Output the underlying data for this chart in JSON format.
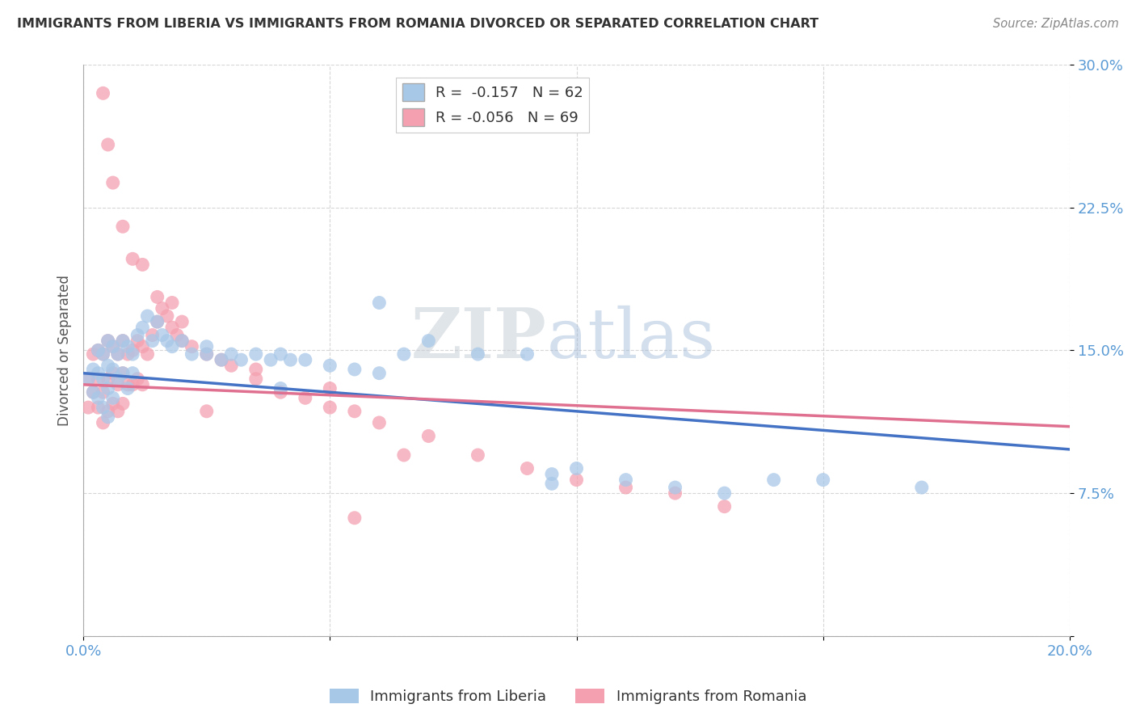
{
  "title": "IMMIGRANTS FROM LIBERIA VS IMMIGRANTS FROM ROMANIA DIVORCED OR SEPARATED CORRELATION CHART",
  "source": "Source: ZipAtlas.com",
  "ylabel": "Divorced or Separated",
  "xlim": [
    0.0,
    0.2
  ],
  "ylim": [
    0.0,
    0.3
  ],
  "liberia_color": "#a8c8e8",
  "romania_color": "#f4a0b0",
  "liberia_R": -0.157,
  "liberia_N": 62,
  "romania_R": -0.056,
  "romania_N": 69,
  "liberia_line_color": "#4472c4",
  "romania_line_color": "#e07090",
  "watermark_zip": "ZIP",
  "watermark_atlas": "atlas",
  "legend_label_1": "Immigrants from Liberia",
  "legend_label_2": "Immigrants from Romania",
  "liberia_x": [
    0.001,
    0.002,
    0.002,
    0.003,
    0.003,
    0.003,
    0.004,
    0.004,
    0.004,
    0.005,
    0.005,
    0.005,
    0.005,
    0.006,
    0.006,
    0.006,
    0.007,
    0.007,
    0.008,
    0.008,
    0.009,
    0.009,
    0.01,
    0.01,
    0.011,
    0.012,
    0.013,
    0.014,
    0.015,
    0.016,
    0.017,
    0.018,
    0.02,
    0.022,
    0.025,
    0.028,
    0.03,
    0.032,
    0.035,
    0.038,
    0.04,
    0.042,
    0.045,
    0.05,
    0.055,
    0.06,
    0.065,
    0.07,
    0.08,
    0.09,
    0.095,
    0.1,
    0.11,
    0.12,
    0.13,
    0.15,
    0.17,
    0.04,
    0.025,
    0.06,
    0.14,
    0.095
  ],
  "liberia_y": [
    0.135,
    0.14,
    0.128,
    0.15,
    0.138,
    0.125,
    0.148,
    0.135,
    0.12,
    0.155,
    0.142,
    0.13,
    0.115,
    0.152,
    0.14,
    0.125,
    0.148,
    0.135,
    0.155,
    0.138,
    0.152,
    0.13,
    0.148,
    0.138,
    0.158,
    0.162,
    0.168,
    0.155,
    0.165,
    0.158,
    0.155,
    0.152,
    0.155,
    0.148,
    0.152,
    0.145,
    0.148,
    0.145,
    0.148,
    0.145,
    0.148,
    0.145,
    0.145,
    0.142,
    0.14,
    0.175,
    0.148,
    0.155,
    0.148,
    0.148,
    0.085,
    0.088,
    0.082,
    0.078,
    0.075,
    0.082,
    0.078,
    0.13,
    0.148,
    0.138,
    0.082,
    0.08
  ],
  "romania_x": [
    0.001,
    0.001,
    0.002,
    0.002,
    0.003,
    0.003,
    0.003,
    0.004,
    0.004,
    0.004,
    0.005,
    0.005,
    0.005,
    0.006,
    0.006,
    0.006,
    0.007,
    0.007,
    0.007,
    0.008,
    0.008,
    0.008,
    0.009,
    0.009,
    0.01,
    0.01,
    0.011,
    0.011,
    0.012,
    0.012,
    0.013,
    0.014,
    0.015,
    0.016,
    0.017,
    0.018,
    0.019,
    0.02,
    0.022,
    0.025,
    0.028,
    0.03,
    0.035,
    0.04,
    0.045,
    0.05,
    0.055,
    0.06,
    0.07,
    0.08,
    0.09,
    0.1,
    0.11,
    0.12,
    0.13,
    0.004,
    0.005,
    0.006,
    0.008,
    0.01,
    0.012,
    0.015,
    0.018,
    0.02,
    0.025,
    0.035,
    0.05,
    0.055,
    0.065
  ],
  "romania_y": [
    0.135,
    0.12,
    0.148,
    0.128,
    0.15,
    0.135,
    0.12,
    0.148,
    0.128,
    0.112,
    0.155,
    0.135,
    0.118,
    0.152,
    0.138,
    0.122,
    0.148,
    0.132,
    0.118,
    0.155,
    0.138,
    0.122,
    0.148,
    0.132,
    0.15,
    0.132,
    0.155,
    0.135,
    0.152,
    0.132,
    0.148,
    0.158,
    0.165,
    0.172,
    0.168,
    0.162,
    0.158,
    0.155,
    0.152,
    0.148,
    0.145,
    0.142,
    0.135,
    0.128,
    0.125,
    0.12,
    0.118,
    0.112,
    0.105,
    0.095,
    0.088,
    0.082,
    0.078,
    0.075,
    0.068,
    0.285,
    0.258,
    0.238,
    0.215,
    0.198,
    0.195,
    0.178,
    0.175,
    0.165,
    0.118,
    0.14,
    0.13,
    0.062,
    0.095
  ],
  "liberia_line_start": 0.138,
  "liberia_line_end": 0.098,
  "romania_line_start": 0.132,
  "romania_line_end": 0.11
}
